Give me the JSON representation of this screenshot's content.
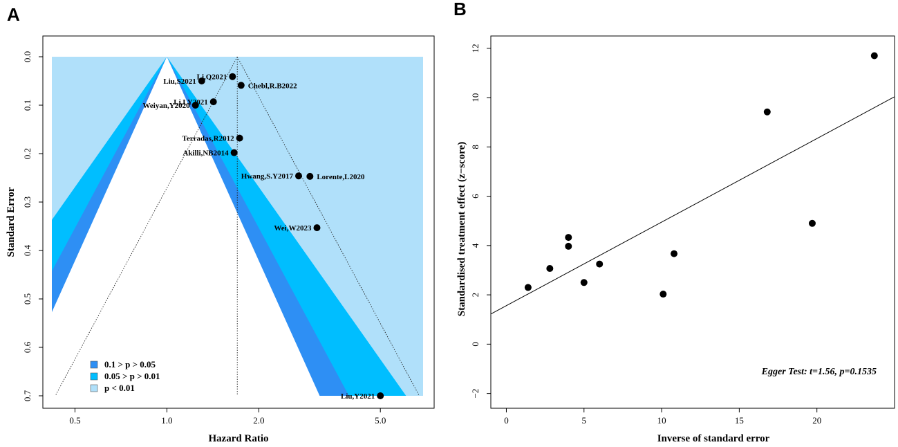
{
  "panels": {
    "a": "A",
    "b": "B"
  },
  "chart_data": [
    {
      "type": "scatter",
      "subtype": "contour-enhanced funnel plot",
      "xlabel": "Hazard Ratio",
      "ylabel": "Standard Error",
      "x_scale": "log",
      "xlim": [
        0.42,
        6.9
      ],
      "ylim": [
        0.7,
        0.0
      ],
      "x_ticks": [
        {
          "v": 0.5,
          "label": "0.5"
        },
        {
          "v": 1.0,
          "label": "1.0"
        },
        {
          "v": 2.0,
          "label": "2.0"
        },
        {
          "v": 5.0,
          "label": "5.0"
        }
      ],
      "y_ticks": [
        {
          "v": 0.0,
          "label": "0.0"
        },
        {
          "v": 0.1,
          "label": "0.1"
        },
        {
          "v": 0.2,
          "label": "0.2"
        },
        {
          "v": 0.3,
          "label": "0.3"
        },
        {
          "v": 0.4,
          "label": "0.4"
        },
        {
          "v": 0.5,
          "label": "0.5"
        },
        {
          "v": 0.6,
          "label": "0.6"
        },
        {
          "v": 0.7,
          "label": "0.7"
        }
      ],
      "reference_value": 1.0,
      "pooled_estimate": 1.7,
      "contours": [
        {
          "label": "0.1 > p > 0.05",
          "z": 1.645,
          "color": "#2E8FF4"
        },
        {
          "label": "0.05 > p > 0.01",
          "z": 1.96,
          "color": "#00BEFF"
        },
        {
          "label": "p < 0.01",
          "z": 2.576,
          "color": "#B0E0FA"
        }
      ],
      "points": [
        {
          "study": "Li,Q2021",
          "hr": 1.64,
          "se": 0.041,
          "anchor": "end"
        },
        {
          "study": "Chebl,R.B2022",
          "hr": 1.75,
          "se": 0.059,
          "anchor": "start"
        },
        {
          "study": "Liu,S2021",
          "hr": 1.3,
          "se": 0.05,
          "anchor": "end"
        },
        {
          "study": "Li,LY2021",
          "hr": 1.42,
          "se": 0.093,
          "anchor": "end"
        },
        {
          "study": "Weiyan,Y2020",
          "hr": 1.24,
          "se": 0.1,
          "anchor": "end"
        },
        {
          "study": "Terradas,R2012",
          "hr": 1.73,
          "se": 0.168,
          "anchor": "end"
        },
        {
          "study": "Akilli,NB2014",
          "hr": 1.66,
          "se": 0.198,
          "anchor": "end"
        },
        {
          "study": "Hwang,S.Y2017",
          "hr": 2.7,
          "se": 0.246,
          "anchor": "end"
        },
        {
          "study": "Lorente,L2020",
          "hr": 2.94,
          "se": 0.247,
          "anchor": "start"
        },
        {
          "study": "Wei,W2023",
          "hr": 3.1,
          "se": 0.353,
          "anchor": "end"
        },
        {
          "study": "Liu,Y2021",
          "hr": 5.0,
          "se": 0.7,
          "anchor": "end"
        }
      ]
    },
    {
      "type": "scatter",
      "subtype": "Egger regression",
      "xlabel": "Inverse of standard error",
      "ylabel": "Standardised treatment effect (z−score)",
      "xlim": [
        -1.0,
        25.0
      ],
      "ylim": [
        -2.6,
        12.5
      ],
      "x_ticks": [
        {
          "v": 0,
          "label": "0"
        },
        {
          "v": 5,
          "label": "5"
        },
        {
          "v": 10,
          "label": "10"
        },
        {
          "v": 15,
          "label": "15"
        },
        {
          "v": 20,
          "label": "20"
        }
      ],
      "y_ticks": [
        {
          "v": -2,
          "label": "−2"
        },
        {
          "v": 0,
          "label": "0"
        },
        {
          "v": 2,
          "label": "2"
        },
        {
          "v": 4,
          "label": "4"
        },
        {
          "v": 6,
          "label": "6"
        },
        {
          "v": 8,
          "label": "8"
        },
        {
          "v": 10,
          "label": "10"
        },
        {
          "v": 12,
          "label": "12"
        }
      ],
      "regression": {
        "intercept": 1.56,
        "slope": 0.339
      },
      "annotation": "Egger Test: t=1.56, p=0.1535",
      "points": [
        {
          "x": 1.4,
          "y": 2.3
        },
        {
          "x": 2.8,
          "y": 3.07
        },
        {
          "x": 4.0,
          "y": 3.97
        },
        {
          "x": 4.0,
          "y": 4.33
        },
        {
          "x": 5.0,
          "y": 2.5
        },
        {
          "x": 6.0,
          "y": 3.25
        },
        {
          "x": 10.1,
          "y": 2.03
        },
        {
          "x": 10.8,
          "y": 3.67
        },
        {
          "x": 16.8,
          "y": 9.42
        },
        {
          "x": 19.7,
          "y": 4.9
        },
        {
          "x": 23.7,
          "y": 11.7
        }
      ]
    }
  ]
}
